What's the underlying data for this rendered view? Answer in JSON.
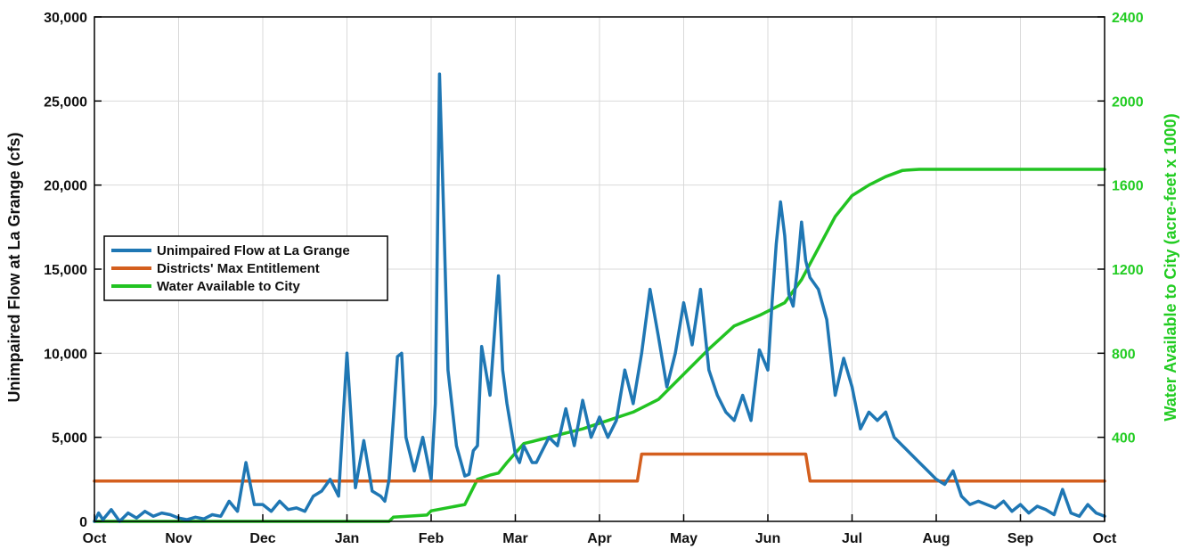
{
  "chart_data": {
    "type": "line",
    "title": "",
    "xlabel": "",
    "ylabel": "Unimpaired Flow at La Grange (cfs)",
    "y2label": "Water Available to City (acre-feet x 1000)",
    "x_ticks": [
      "Oct",
      "Nov",
      "Dec",
      "Jan",
      "Feb",
      "Mar",
      "Apr",
      "May",
      "Jun",
      "Jul",
      "Aug",
      "Sep",
      "Oct"
    ],
    "ylim": [
      0,
      30000
    ],
    "y_ticks": [
      "0",
      "5,000",
      "10,000",
      "15,000",
      "20,000",
      "25,000",
      "30,000"
    ],
    "y2lim": [
      0,
      2400
    ],
    "y2_ticks": [
      "400",
      "800",
      "1200",
      "1600",
      "2000",
      "2400"
    ],
    "grid": true,
    "legend_placement": "left",
    "series": [
      {
        "name": "Unimpaired Flow at La Grange",
        "axis": "left",
        "color": "#1f77b4",
        "x": [
          0,
          0.05,
          0.1,
          0.2,
          0.3,
          0.4,
          0.5,
          0.6,
          0.7,
          0.8,
          0.9,
          1.0,
          1.1,
          1.2,
          1.3,
          1.4,
          1.5,
          1.6,
          1.7,
          1.8,
          1.9,
          2.0,
          2.1,
          2.2,
          2.3,
          2.4,
          2.5,
          2.6,
          2.7,
          2.8,
          2.9,
          3.0,
          3.1,
          3.2,
          3.3,
          3.4,
          3.45,
          3.5,
          3.55,
          3.6,
          3.65,
          3.7,
          3.8,
          3.9,
          4.0,
          4.05,
          4.1,
          4.15,
          4.2,
          4.3,
          4.4,
          4.45,
          4.5,
          4.55,
          4.6,
          4.7,
          4.8,
          4.85,
          4.9,
          4.95,
          5.0,
          5.05,
          5.1,
          5.15,
          5.2,
          5.25,
          5.3,
          5.4,
          5.5,
          5.6,
          5.7,
          5.8,
          5.9,
          6.0,
          6.1,
          6.2,
          6.3,
          6.4,
          6.5,
          6.6,
          6.7,
          6.8,
          6.9,
          7.0,
          7.1,
          7.2,
          7.3,
          7.4,
          7.5,
          7.6,
          7.7,
          7.8,
          7.9,
          8.0,
          8.05,
          8.1,
          8.15,
          8.2,
          8.25,
          8.3,
          8.35,
          8.4,
          8.45,
          8.5,
          8.6,
          8.7,
          8.8,
          8.9,
          9.0,
          9.1,
          9.2,
          9.3,
          9.4,
          9.5,
          9.6,
          9.7,
          9.8,
          9.9,
          10.0,
          10.1,
          10.2,
          10.3,
          10.4,
          10.5,
          10.6,
          10.7,
          10.8,
          10.9,
          11.0,
          11.1,
          11.2,
          11.3,
          11.4,
          11.5,
          11.6,
          11.7,
          11.8,
          11.9,
          12.0
        ],
        "values": [
          0,
          500,
          100,
          700,
          0,
          500,
          200,
          600,
          300,
          500,
          400,
          200,
          100,
          250,
          150,
          400,
          300,
          1200,
          600,
          3500,
          1000,
          1000,
          600,
          1200,
          700,
          800,
          600,
          1500,
          1800,
          2500,
          1500,
          10000,
          2000,
          4800,
          1800,
          1500,
          1200,
          2500,
          6000,
          9800,
          10000,
          5000,
          3000,
          5000,
          2500,
          7000,
          26600,
          18000,
          9000,
          4500,
          2700,
          2800,
          4200,
          4500,
          10400,
          7500,
          14600,
          9000,
          7000,
          5500,
          4000,
          3500,
          4500,
          4000,
          3500,
          3500,
          4000,
          5000,
          4500,
          6700,
          4500,
          7200,
          5000,
          6200,
          5000,
          6000,
          9000,
          7000,
          10000,
          13800,
          11000,
          8000,
          10000,
          13000,
          10500,
          13800,
          9000,
          7500,
          6500,
          6000,
          7500,
          6000,
          10200,
          9000,
          13000,
          16500,
          19000,
          17000,
          13500,
          12800,
          15000,
          17800,
          15500,
          14500,
          13800,
          12000,
          7500,
          9700,
          8000,
          5500,
          6500,
          6000,
          6500,
          5000,
          4500,
          4000,
          3500,
          3000,
          2500,
          2200,
          3000,
          1500,
          1000,
          1200,
          1000,
          800,
          1200,
          600,
          1000,
          500,
          900,
          700,
          400,
          1900,
          500,
          300,
          1000,
          500,
          300
        ]
      },
      {
        "name": "Districts' Max Entitlement",
        "axis": "left",
        "color": "#d45f1e",
        "x": [
          0,
          6.45,
          6.5,
          8.45,
          8.5,
          12
        ],
        "values": [
          2400,
          2400,
          4000,
          4000,
          2400,
          2400
        ]
      },
      {
        "name": "Water Available to City",
        "axis": "right",
        "color": "#22c322",
        "x": [
          0,
          3.5,
          3.55,
          3.95,
          4.0,
          4.4,
          4.45,
          4.55,
          4.7,
          4.8,
          4.9,
          5.1,
          5.2,
          5.3,
          5.5,
          5.8,
          6.1,
          6.4,
          6.7,
          7.0,
          7.3,
          7.6,
          7.9,
          8.2,
          8.4,
          8.6,
          8.8,
          9.0,
          9.2,
          9.4,
          9.6,
          9.8,
          10.0,
          10.5,
          11.0,
          11.5,
          12.0
        ],
        "values": [
          0,
          0,
          20,
          30,
          50,
          80,
          120,
          200,
          220,
          230,
          280,
          370,
          380,
          390,
          410,
          440,
          480,
          520,
          580,
          700,
          820,
          930,
          980,
          1040,
          1150,
          1300,
          1450,
          1550,
          1600,
          1640,
          1670,
          1675,
          1675,
          1675,
          1675,
          1675,
          1675
        ]
      }
    ]
  }
}
